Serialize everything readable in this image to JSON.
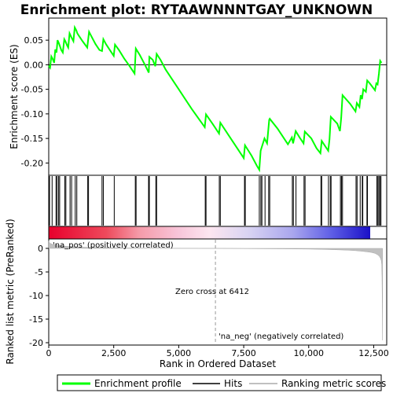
{
  "chart_data": {
    "type": "line",
    "title": "Enrichment plot: RYTAAWNNNTGAY_UNKNOWN",
    "panels": {
      "es": {
        "ylabel": "Enrichment score (ES)",
        "ylim": [
          -0.225,
          0.095
        ],
        "yticks": [
          0.05,
          0.0,
          -0.05,
          -0.1,
          -0.15,
          -0.2
        ],
        "ytick_labels": [
          "0.05",
          "0.00",
          "-0.05",
          "-0.10",
          "-0.15",
          "-0.20"
        ],
        "series": [
          {
            "name": "Enrichment profile",
            "color": "#00ff00",
            "x": [
              0,
              50,
              100,
              150,
              210,
              250,
              300,
              340,
              380,
              430,
              480,
              540,
              600,
              640,
              700,
              750,
              800,
              870,
              950,
              1000,
              1060,
              1100,
              1150,
              1300,
              1480,
              1550,
              1600,
              1700,
              1800,
              1950,
              2050,
              2100,
              2200,
              2350,
              2500,
              2550,
              2700,
              2900,
              3100,
              3300,
              3350,
              3500,
              3700,
              3850,
              3870,
              4000,
              4100,
              4150,
              4300,
              4500,
              5000,
              5500,
              6000,
              6050,
              6300,
              6550,
              6600,
              7000,
              7500,
              7550,
              7800,
              8000,
              8100,
              8150,
              8300,
              8400,
              8480,
              8500,
              8800,
              9200,
              9350,
              9400,
              9500,
              9650,
              9800,
              9850,
              10100,
              10300,
              10450,
              10500,
              10750,
              10800,
              10850,
              11100,
              11200,
              11250,
              11300,
              11600,
              11800,
              11850,
              11950,
              12000,
              12050,
              12100,
              12200,
              12250,
              12350,
              12450,
              12550,
              12600,
              12650,
              12700,
              12750,
              12800
            ],
            "y": [
              -0.002,
              -0.006,
              0.017,
              0.012,
              0.004,
              0.031,
              0.025,
              0.05,
              0.045,
              0.038,
              0.03,
              0.025,
              0.052,
              0.048,
              0.04,
              0.035,
              0.064,
              0.056,
              0.048,
              0.076,
              0.07,
              0.064,
              0.06,
              0.048,
              0.035,
              0.067,
              0.062,
              0.052,
              0.042,
              0.03,
              0.028,
              0.052,
              0.042,
              0.03,
              0.018,
              0.041,
              0.03,
              0.013,
              -0.002,
              -0.018,
              0.033,
              0.02,
              0.0,
              -0.016,
              0.016,
              0.01,
              -0.003,
              0.022,
              0.01,
              -0.01,
              -0.05,
              -0.09,
              -0.127,
              -0.101,
              -0.12,
              -0.14,
              -0.118,
              -0.15,
              -0.19,
              -0.164,
              -0.185,
              -0.205,
              -0.214,
              -0.175,
              -0.15,
              -0.16,
              -0.112,
              -0.11,
              -0.13,
              -0.162,
              -0.148,
              -0.16,
              -0.135,
              -0.148,
              -0.16,
              -0.136,
              -0.15,
              -0.17,
              -0.18,
              -0.155,
              -0.175,
              -0.152,
              -0.106,
              -0.12,
              -0.135,
              -0.108,
              -0.062,
              -0.08,
              -0.095,
              -0.078,
              -0.086,
              -0.062,
              -0.07,
              -0.05,
              -0.055,
              -0.032,
              -0.038,
              -0.045,
              -0.052,
              -0.038,
              -0.04,
              -0.018,
              0.008,
              0.004
            ]
          }
        ]
      },
      "hits": {
        "legend_name": "Hits",
        "positions": [
          30,
          130,
          280,
          320,
          380,
          420,
          620,
          660,
          820,
          880,
          1020,
          1080,
          1500,
          1530,
          2050,
          2100,
          2520,
          3330,
          3360,
          3840,
          3870,
          4120,
          4150,
          6020,
          6050,
          6560,
          6600,
          7530,
          7560,
          8100,
          8160,
          8200,
          8320,
          8460,
          8500,
          9370,
          9410,
          9510,
          9820,
          9860,
          10470,
          10500,
          10760,
          10830,
          10860,
          11220,
          11260,
          11300,
          11820,
          11860,
          11980,
          12060,
          12080,
          12240,
          12260,
          12620,
          12660,
          12700,
          12740,
          12780
        ]
      },
      "metric": {
        "ylabel": "Ranked list metric (PreRanked)",
        "legend_name": "Ranking metric scores",
        "ylim": [
          -20.5,
          2.0
        ],
        "yticks": [
          0,
          -5,
          -10,
          -15,
          -20
        ],
        "ytick_labels": [
          "0",
          "-5",
          "-10",
          "-15",
          "-20"
        ],
        "x": [
          0,
          20,
          60,
          150,
          300,
          500,
          800,
          1200,
          2000,
          3000,
          4000,
          5000,
          6000,
          6412,
          7000,
          8000,
          9000,
          10000,
          10500,
          11000,
          11500,
          11800,
          12000,
          12200,
          12400,
          12550,
          12650,
          12720,
          12760,
          12790,
          12810,
          12820,
          12830,
          12840
        ],
        "y": [
          1.6,
          1.3,
          1.05,
          0.85,
          0.68,
          0.52,
          0.38,
          0.27,
          0.15,
          0.08,
          0.04,
          0.02,
          0.005,
          0.0,
          -0.02,
          -0.06,
          -0.1,
          -0.15,
          -0.2,
          -0.28,
          -0.38,
          -0.48,
          -0.58,
          -0.7,
          -0.85,
          -1.05,
          -1.35,
          -1.7,
          -2.1,
          -2.6,
          -3.5,
          -6.0,
          -12.0,
          -19.5
        ]
      }
    },
    "xlabel": "Rank in Ordered Dataset",
    "xlim": [
      0,
      13000
    ],
    "xticks": [
      0,
      2500,
      5000,
      7500,
      10000,
      12500
    ],
    "xtick_labels": [
      "0",
      "2,500",
      "5,000",
      "7,500",
      "10,000",
      "12,500"
    ],
    "zero_cross": 6412,
    "annotations": {
      "pos_label": "'na_pos' (positively correlated)",
      "neg_label": "'na_neg' (negatively correlated)",
      "zero_cross_label": "Zero cross at 6412"
    },
    "legend": {
      "placement": "bottom",
      "items": [
        {
          "label": "Enrichment profile",
          "color": "#00ff00"
        },
        {
          "label": "Hits",
          "color": "#000000"
        },
        {
          "label": "Ranking metric scores",
          "color": "#c0c0c0"
        }
      ]
    },
    "colors": {
      "profile": "#00ff00",
      "hits": "#000000",
      "metric_fill": "#c0c0c0",
      "pos_label": "#cc0000",
      "neg_label": "#0000cc"
    }
  }
}
